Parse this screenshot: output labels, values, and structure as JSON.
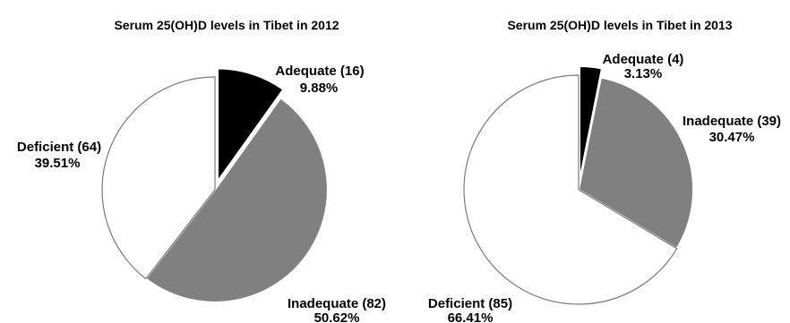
{
  "chart_data": [
    {
      "type": "pie",
      "title": "Serum 25(OH)D levels in Tibet in 2012",
      "colors": [
        "#000000",
        "#808080",
        "#ffffff"
      ],
      "categories": [
        "Adequate",
        "Inadequate",
        "Deficient"
      ],
      "values": [
        16,
        82,
        64
      ],
      "slices": [
        {
          "name": "Adequate",
          "count": 16,
          "percent": 9.88,
          "color": "#000000",
          "exploded": true,
          "label": "Adequate (16)",
          "pct_label": "9.88%"
        },
        {
          "name": "Inadequate",
          "count": 82,
          "percent": 50.62,
          "color": "#808080",
          "exploded": false,
          "label": "Inadequate (82)",
          "pct_label": "50.62%"
        },
        {
          "name": "Deficient",
          "count": 64,
          "percent": 39.51,
          "color": "#ffffff",
          "exploded": false,
          "label": "Deficient (64)",
          "pct_label": "39.51%"
        }
      ]
    },
    {
      "type": "pie",
      "title": "Serum 25(OH)D levels in Tibet in 2013",
      "colors": [
        "#000000",
        "#808080",
        "#ffffff"
      ],
      "categories": [
        "Adequate",
        "Inadequate",
        "Deficient"
      ],
      "values": [
        4,
        39,
        85
      ],
      "slices": [
        {
          "name": "Adequate",
          "count": 4,
          "percent": 3.13,
          "color": "#000000",
          "exploded": true,
          "label": "Adequate (4)",
          "pct_label": "3.13%"
        },
        {
          "name": "Inadequate",
          "count": 39,
          "percent": 30.47,
          "color": "#808080",
          "exploded": false,
          "label": "Inadequate (39)",
          "pct_label": "30.47%"
        },
        {
          "name": "Deficient",
          "count": 85,
          "percent": 66.41,
          "color": "#ffffff",
          "exploded": false,
          "label": "Deficient (85)",
          "pct_label": "66.41%"
        }
      ]
    }
  ]
}
